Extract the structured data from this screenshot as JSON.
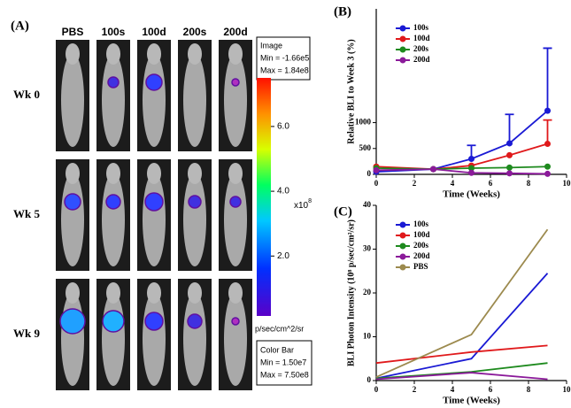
{
  "panel_a": {
    "label": "(A)",
    "columns": [
      "PBS",
      "100s",
      "100d",
      "200s",
      "200d"
    ],
    "rows": [
      "Wk 0",
      "Wk 5",
      "Wk 9"
    ],
    "image_box": [
      "Image",
      "Min = -1.66e5",
      "Max = 1.84e8"
    ],
    "colorbar": {
      "lim": [
        0.15,
        7.5
      ],
      "ticks": [
        {
          "value": 6,
          "label": "6.0"
        },
        {
          "value": 4,
          "label": "4.0"
        },
        {
          "value": 2,
          "label": "2.0"
        }
      ],
      "exponent": "x10",
      "exponent_power": "8",
      "unit": "p/sec/cm^2/sr"
    },
    "colorbar_box": [
      "Color Bar",
      "Min = 1.50e7",
      "Max = 7.50e8"
    ]
  },
  "chart_data": [
    {
      "type": "line",
      "title": "(B)",
      "y_label": "Relative BLI  to Week 3 (%)",
      "x_label": "Time (Weeks)",
      "x": [
        0,
        3,
        5,
        7,
        9
      ],
      "xlim": [
        0,
        10
      ],
      "xticks": [
        0,
        2,
        4,
        6,
        8,
        10
      ],
      "ylim": [
        0,
        3200
      ],
      "yticks": [
        0,
        500,
        1000
      ],
      "markers": true,
      "legend": "upper-left",
      "series": [
        {
          "name": "100s",
          "color": "#1a1ad4",
          "values": [
            50,
            100,
            300,
            600,
            1230
          ],
          "errors": [
            null,
            null,
            260,
            560,
            1210
          ]
        },
        {
          "name": "100d",
          "color": "#e0191b",
          "values": [
            150,
            100,
            170,
            370,
            590
          ],
          "errors": [
            null,
            null,
            null,
            null,
            460
          ]
        },
        {
          "name": "200s",
          "color": "#1e8a1e",
          "values": [
            120,
            100,
            120,
            130,
            150
          ],
          "errors": [
            null,
            null,
            null,
            null,
            null
          ]
        },
        {
          "name": "200d",
          "color": "#8b1a9a",
          "values": [
            80,
            100,
            30,
            20,
            10
          ],
          "errors": [
            null,
            null,
            null,
            null,
            null
          ]
        }
      ]
    },
    {
      "type": "line",
      "title": "(C)",
      "y_label": "BLI Photon Intensity (10⁸ p/sec/cm²/sr)",
      "x_label": "Time (Weeks)",
      "x": [
        0,
        5,
        9
      ],
      "xlim": [
        0,
        10
      ],
      "xticks": [
        0,
        2,
        4,
        6,
        8,
        10
      ],
      "ylim": [
        0,
        40
      ],
      "yticks": [
        0,
        10,
        20,
        30,
        40
      ],
      "markers": false,
      "legend": "upper-left",
      "series": [
        {
          "name": "100s",
          "color": "#1a1ad4",
          "values": [
            0.5,
            5,
            24.5
          ]
        },
        {
          "name": "100d",
          "color": "#e0191b",
          "values": [
            4,
            6.5,
            8
          ]
        },
        {
          "name": "200s",
          "color": "#1e8a1e",
          "values": [
            0.5,
            2,
            4
          ]
        },
        {
          "name": "200d",
          "color": "#8b1a9a",
          "values": [
            0.3,
            1.8,
            0.3
          ]
        },
        {
          "name": "PBS",
          "color": "#9c8a4e",
          "values": [
            0.8,
            10.5,
            34.5
          ]
        }
      ]
    }
  ]
}
